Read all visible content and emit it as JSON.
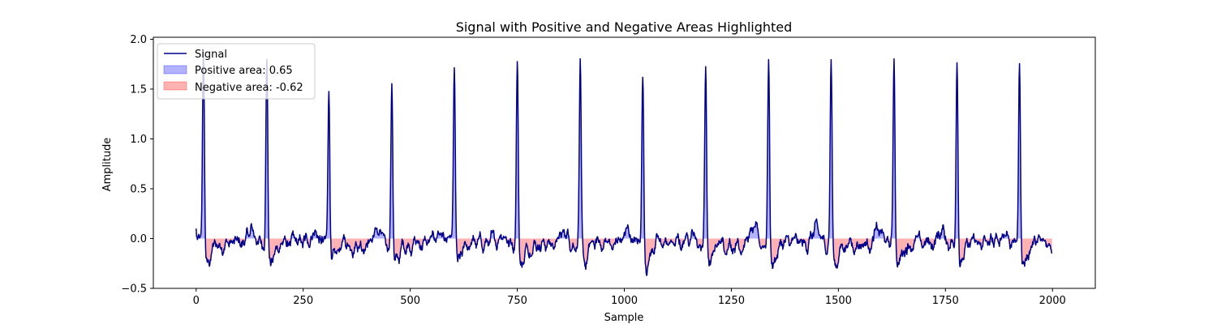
{
  "chart_data": {
    "type": "line",
    "title": "Signal with Positive and Negative Areas Highlighted",
    "xlabel": "Sample",
    "ylabel": "Amplitude",
    "xlim": [
      -100,
      2100
    ],
    "ylim": [
      -0.5,
      2.02
    ],
    "xticks": [
      0,
      250,
      500,
      750,
      1000,
      1250,
      1500,
      1750,
      2000
    ],
    "xtick_labels": [
      "0",
      "250",
      "500",
      "750",
      "1000",
      "1250",
      "1500",
      "1750",
      "2000"
    ],
    "yticks": [
      -0.5,
      0.0,
      0.5,
      1.0,
      1.5,
      2.0
    ],
    "ytick_labels": [
      "−0.5",
      "0.0",
      "0.5",
      "1.0",
      "1.5",
      "2.0"
    ],
    "grid": false,
    "legend_position": "top-left",
    "legend": [
      {
        "label": "Signal",
        "kind": "line"
      },
      {
        "label": "Positive area: 0.65",
        "kind": "patch-positive"
      },
      {
        "label": "Negative area: -0.62",
        "kind": "patch-negative"
      }
    ],
    "colors": {
      "signal": "#00008b",
      "positive_fill": "#0000ff",
      "negative_fill": "#ff0000"
    },
    "series": [
      {
        "name": "Signal",
        "n_points": 2000,
        "baseline": -0.05,
        "peaks": [
          {
            "x": 17,
            "y": 1.87
          },
          {
            "x": 165,
            "y": 1.83
          },
          {
            "x": 310,
            "y": 1.52
          },
          {
            "x": 457,
            "y": 1.54
          },
          {
            "x": 603,
            "y": 1.65
          },
          {
            "x": 750,
            "y": 1.79
          },
          {
            "x": 897,
            "y": 1.71
          },
          {
            "x": 1043,
            "y": 1.68
          },
          {
            "x": 1190,
            "y": 1.73
          },
          {
            "x": 1337,
            "y": 1.81
          },
          {
            "x": 1483,
            "y": 1.8
          },
          {
            "x": 1630,
            "y": 1.83
          },
          {
            "x": 1777,
            "y": 1.84
          },
          {
            "x": 1923,
            "y": 1.74
          }
        ],
        "post_peak_dip": -0.2,
        "min_value": -0.4
      }
    ]
  }
}
